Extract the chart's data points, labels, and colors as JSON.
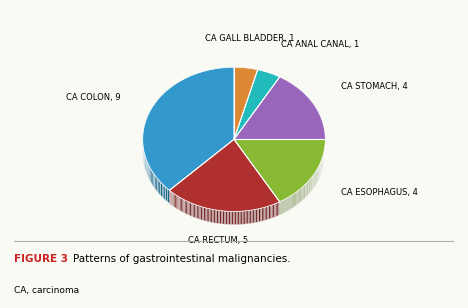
{
  "labels": [
    "CA COLON, 9",
    "CA RECTUM, 5",
    "CA ESOPHAGUS, 4",
    "CA STOMACH, 4",
    "CA ANAL CANAL, 1",
    "CA GALL BLADDER, 1"
  ],
  "values": [
    9,
    5,
    4,
    4,
    1,
    1
  ],
  "colors": [
    "#3399CC",
    "#B03030",
    "#88BB33",
    "#9966BB",
    "#22BBBB",
    "#DD8833"
  ],
  "dark_colors": [
    "#1A6688",
    "#6B1C1C",
    "#4D6B1C",
    "#5C3D70",
    "#136666",
    "#8A5520"
  ],
  "startangle": 90,
  "figure_label": "FIGURE 3",
  "figure_text": " Patterns of gastrointestinal malignancies.",
  "sub_text": "CA, carcinoma",
  "background_color": "#FAFAF5",
  "label_fontsize": 6.0,
  "fig_fontsize": 7.5
}
